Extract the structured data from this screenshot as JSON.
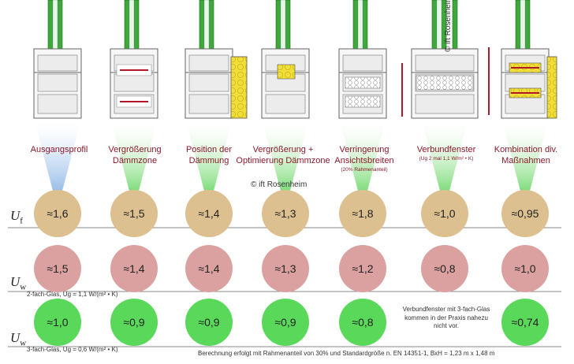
{
  "copyright": "© ift Rosenheim",
  "columns": [
    {
      "label": "Ausgangsprofil",
      "sub": "",
      "uf": "≈1,6",
      "uw2": "≈1,5",
      "uw3": "≈1,0"
    },
    {
      "label": "Vergrößerung Dämmzone",
      "sub": "",
      "uf": "≈1,5",
      "uw2": "≈1,4",
      "uw3": "≈0,9"
    },
    {
      "label": "Position der Dämmung",
      "sub": "",
      "uf": "≈1,4",
      "uw2": "≈1,4",
      "uw3": "≈0,9"
    },
    {
      "label": "Vergrößerung + Optimierung Dämmzone",
      "sub": "",
      "uf": "≈1,3",
      "uw2": "≈1,3",
      "uw3": "≈0,9"
    },
    {
      "label": "Verringerung Ansichtsbreiten",
      "sub": "(20% Rahmenanteil)",
      "uf": "≈1,8",
      "uw2": "≈1,2",
      "uw3": "≈0,8"
    },
    {
      "label": "Verbundfenster",
      "sub": "(Ug 2 mal 1,1 W/m² • K)",
      "uf": "≈1,0",
      "uw2": "≈0,8",
      "uw3": ""
    },
    {
      "label": "Kombination div. Maßnahmen",
      "sub": "",
      "uf": "≈0,95",
      "uw2": "≈1,0",
      "uw3": "≈0,74"
    }
  ],
  "rows": {
    "uf_symbol": "U",
    "uf_sub": "f",
    "uw_symbol": "U",
    "uw_sub": "w",
    "glas2": "2-fach-Glas, Ug = 1,1 W/(m² • K)",
    "glas3": "3-fach-Glas, Ug = 0,6 W/(m² • K)"
  },
  "note": "Verbundfenster mit 3-fach-Glas kommen in der Praxis nahezu nicht vor.",
  "footer": "Berechnung  erfolgt mit Rahmenanteil von 30% und Standardgröße n. EN 14351-1, BxH = 1,23 m  x 1,48 m",
  "colors": {
    "uf_circle": "#dcc08f",
    "uw2_circle": "#dba1a1",
    "uw3_circle": "#59d85a",
    "label_text": "#8b1a2b",
    "glass_green": "#3ea83a",
    "insulation_yellow": "#f0df3a",
    "arrow_red": "#b0182a"
  }
}
